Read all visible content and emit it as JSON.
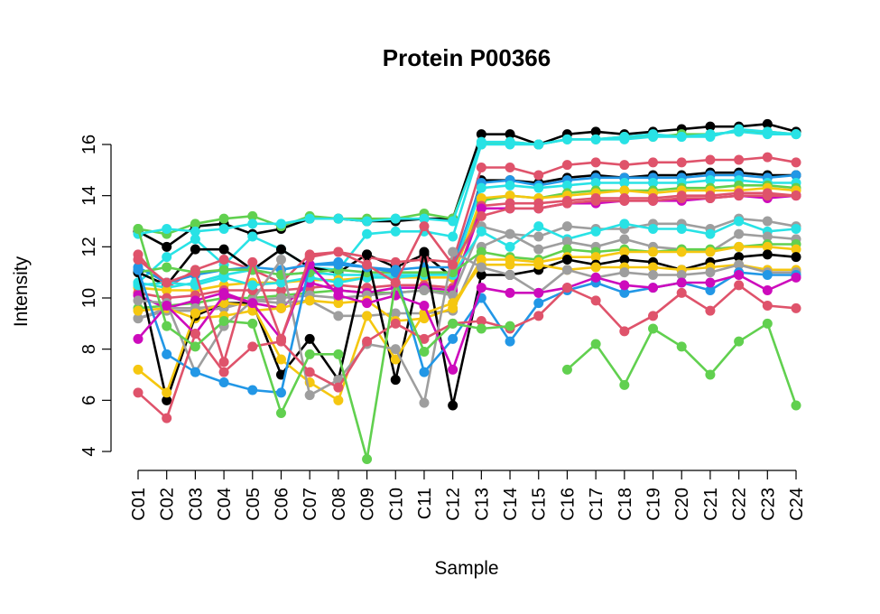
{
  "chart_data": {
    "type": "line",
    "title": "Protein P00366",
    "xlabel": "Sample",
    "ylabel": "Intensity",
    "ylim": [
      4,
      16.5
    ],
    "yticks": [
      4,
      6,
      8,
      10,
      12,
      14,
      16
    ],
    "grid": false,
    "legend": "none",
    "categories": [
      "C01",
      "C02",
      "C03",
      "C04",
      "C05",
      "C06",
      "C07",
      "C08",
      "C09",
      "C10",
      "C11",
      "C12",
      "C13",
      "C14",
      "C15",
      "C16",
      "C17",
      "C18",
      "C19",
      "C20",
      "C21",
      "C22",
      "C23",
      "C24"
    ],
    "series": [
      {
        "color": "#000000",
        "values": [
          12.6,
          12.0,
          12.8,
          12.9,
          12.5,
          12.7,
          13.1,
          13.1,
          13.0,
          13.0,
          13.1,
          13.1,
          16.4,
          16.4,
          16.0,
          16.4,
          16.5,
          16.4,
          16.5,
          16.6,
          16.7,
          16.7,
          16.8,
          16.5
        ]
      },
      {
        "color": "#61D04F",
        "values": [
          12.7,
          12.5,
          12.9,
          13.1,
          13.2,
          12.8,
          13.2,
          13.1,
          13.1,
          13.1,
          13.3,
          13.1,
          16.0,
          16.1,
          16.0,
          16.2,
          16.2,
          16.3,
          16.3,
          16.4,
          16.4,
          16.5,
          16.5,
          16.4
        ]
      },
      {
        "color": "#28E2E5",
        "values": [
          12.5,
          12.7,
          12.6,
          12.7,
          12.9,
          12.9,
          13.1,
          13.1,
          13.0,
          13.1,
          13.1,
          13.0,
          16.1,
          16.1,
          16.0,
          16.2,
          16.2,
          16.2,
          16.3,
          16.3,
          16.4,
          16.5,
          16.4,
          16.4
        ]
      },
      {
        "color": "#28E2E5",
        "values": [
          10.6,
          11.6,
          12.3,
          11.3,
          12.4,
          11.9,
          11.2,
          11.1,
          12.5,
          12.6,
          12.6,
          12.4,
          16.0,
          16.0,
          16.0,
          16.2,
          16.2,
          16.3,
          16.4,
          16.3,
          16.3,
          16.6,
          16.5,
          16.4
        ]
      },
      {
        "color": "#000000",
        "values": [
          11.0,
          10.5,
          11.9,
          11.9,
          11.1,
          11.9,
          11.2,
          11.0,
          11.7,
          11.2,
          11.7,
          10.8,
          14.6,
          14.6,
          14.5,
          14.7,
          14.8,
          14.7,
          14.8,
          14.8,
          14.9,
          14.9,
          14.8,
          14.8
        ]
      },
      {
        "color": "#DF536B",
        "values": [
          11.7,
          10.4,
          11.1,
          11.5,
          11.1,
          10.6,
          11.7,
          11.8,
          11.6,
          11.4,
          11.5,
          11.4,
          15.1,
          15.1,
          14.8,
          15.2,
          15.3,
          15.2,
          15.3,
          15.3,
          15.4,
          15.4,
          15.5,
          15.3
        ]
      },
      {
        "color": "#2297E6",
        "values": [
          11.2,
          10.6,
          10.9,
          11.1,
          11.2,
          11.1,
          11.3,
          11.4,
          11.2,
          11.1,
          11.2,
          11.2,
          14.5,
          14.6,
          14.4,
          14.6,
          14.7,
          14.7,
          14.7,
          14.7,
          14.8,
          14.8,
          14.7,
          14.8
        ]
      },
      {
        "color": "#28E2E5",
        "values": [
          10.6,
          10.4,
          10.6,
          10.9,
          11.1,
          10.9,
          11.0,
          10.9,
          10.9,
          10.9,
          10.9,
          11.0,
          14.3,
          14.4,
          14.3,
          14.4,
          14.5,
          14.5,
          14.5,
          14.5,
          14.6,
          14.6,
          14.5,
          14.5
        ]
      },
      {
        "color": "#61D04F",
        "values": [
          9.6,
          9.7,
          9.8,
          10.0,
          10.0,
          10.1,
          10.2,
          10.3,
          10.2,
          10.2,
          10.3,
          10.2,
          13.8,
          14.0,
          13.9,
          14.1,
          14.2,
          14.2,
          14.2,
          14.3,
          14.3,
          14.4,
          14.4,
          14.3
        ]
      },
      {
        "color": "#F5C710",
        "values": [
          10.4,
          10.3,
          10.3,
          10.5,
          10.6,
          10.6,
          10.7,
          10.7,
          10.8,
          10.8,
          10.8,
          10.8,
          13.9,
          14.0,
          13.9,
          14.0,
          14.1,
          14.2,
          14.1,
          14.2,
          14.2,
          14.2,
          14.3,
          14.2
        ]
      },
      {
        "color": "#DF536B",
        "values": [
          10.2,
          10.0,
          10.1,
          10.3,
          10.3,
          10.3,
          10.4,
          10.5,
          10.4,
          10.5,
          10.5,
          10.4,
          13.6,
          13.7,
          13.7,
          13.8,
          13.9,
          13.9,
          13.9,
          14.0,
          14.0,
          14.1,
          14.1,
          14.0
        ]
      },
      {
        "color": "#CD0BBC",
        "values": [
          10.1,
          9.6,
          9.9,
          10.2,
          9.8,
          9.6,
          10.6,
          10.3,
          10.2,
          10.4,
          10.4,
          10.3,
          13.5,
          13.5,
          13.5,
          13.7,
          13.7,
          13.8,
          13.8,
          13.8,
          13.9,
          14.0,
          13.9,
          14.0
        ]
      },
      {
        "color": "#9E9E9E",
        "values": [
          9.2,
          9.5,
          9.5,
          9.6,
          9.9,
          10.0,
          10.1,
          10.0,
          10.1,
          10.2,
          10.3,
          10.1,
          12.8,
          12.5,
          12.4,
          12.8,
          12.7,
          12.7,
          12.9,
          12.9,
          12.7,
          13.1,
          13.0,
          12.8
        ]
      },
      {
        "color": "#28E2E5",
        "values": [
          10.5,
          10.6,
          10.5,
          10.8,
          10.5,
          10.6,
          10.8,
          10.6,
          10.8,
          10.8,
          10.9,
          10.9,
          12.6,
          12.0,
          12.8,
          12.3,
          12.6,
          12.9,
          12.7,
          12.7,
          12.5,
          13.0,
          12.6,
          12.7
        ]
      },
      {
        "color": "#9E9E9E",
        "values": [
          9.2,
          9.6,
          9.6,
          9.7,
          9.9,
          9.8,
          9.9,
          9.3,
          9.3,
          9.4,
          9.4,
          9.5,
          12.0,
          12.5,
          11.9,
          12.2,
          12.0,
          12.3,
          12.0,
          11.9,
          11.8,
          12.5,
          12.4,
          12.3
        ]
      },
      {
        "color": "#61D04F",
        "values": [
          11.0,
          11.2,
          11.0,
          11.1,
          11.1,
          10.9,
          11.0,
          11.1,
          11.0,
          11.0,
          11.0,
          11.0,
          11.8,
          11.6,
          11.5,
          11.9,
          11.8,
          11.9,
          11.8,
          11.9,
          11.9,
          12.0,
          12.1,
          12.1
        ]
      },
      {
        "color": "#F5C710",
        "values": [
          9.5,
          9.6,
          9.2,
          9.3,
          9.5,
          9.6,
          9.9,
          9.8,
          9.9,
          9.1,
          9.2,
          9.6,
          11.5,
          11.5,
          11.4,
          11.6,
          11.6,
          11.8,
          11.8,
          11.8,
          11.8,
          12.0,
          12.0,
          11.9
        ]
      },
      {
        "color": "#000000",
        "values": [
          11.0,
          6.0,
          9.3,
          9.8,
          9.8,
          7.0,
          8.4,
          6.8,
          11.7,
          6.8,
          11.8,
          5.8,
          10.9,
          10.9,
          11.1,
          11.5,
          11.3,
          11.5,
          11.4,
          11.1,
          11.4,
          11.6,
          11.7,
          11.6
        ]
      },
      {
        "color": "#F5C710",
        "values": [
          7.2,
          6.3,
          9.4,
          9.8,
          9.7,
          7.6,
          6.7,
          6.0,
          9.3,
          7.6,
          9.4,
          9.8,
          11.3,
          11.3,
          11.3,
          11.1,
          11.2,
          11.2,
          11.2,
          11.1,
          11.2,
          11.3,
          11.1,
          11.1
        ]
      },
      {
        "color": "#9E9E9E",
        "values": [
          9.9,
          9.8,
          7.1,
          8.9,
          9.9,
          11.5,
          6.2,
          6.8,
          8.2,
          8.0,
          5.9,
          11.8,
          11.2,
          10.9,
          10.2,
          11.1,
          10.8,
          11.0,
          10.9,
          10.9,
          11.0,
          11.3,
          11.0,
          11.0
        ]
      },
      {
        "color": "#2297E6",
        "values": [
          11.1,
          7.8,
          7.1,
          6.7,
          6.4,
          6.3,
          11.3,
          11.3,
          11.2,
          11.0,
          7.1,
          8.4,
          10.0,
          8.3,
          9.8,
          10.3,
          10.6,
          10.2,
          10.4,
          10.6,
          10.3,
          11.0,
          10.9,
          10.9
        ]
      },
      {
        "color": "#CD0BBC",
        "values": [
          8.4,
          9.7,
          8.6,
          10.1,
          9.8,
          8.4,
          11.3,
          10.1,
          9.8,
          10.1,
          9.7,
          7.2,
          10.4,
          10.2,
          10.2,
          10.4,
          10.8,
          10.5,
          10.4,
          10.6,
          10.6,
          10.9,
          10.3,
          10.8
        ]
      },
      {
        "color": "#DF536B",
        "values": [
          6.3,
          5.3,
          8.6,
          7.1,
          8.1,
          8.3,
          7.1,
          6.5,
          8.3,
          9.0,
          8.4,
          9.0,
          9.1,
          8.8,
          9.3,
          10.4,
          9.9,
          8.7,
          9.3,
          10.2,
          9.5,
          10.5,
          9.7,
          9.6
        ]
      },
      {
        "color": "#61D04F",
        "values": [
          12.7,
          8.9,
          8.1,
          9.1,
          9.0,
          5.5,
          7.8,
          7.8,
          3.7,
          10.6,
          7.9,
          9.0,
          8.8,
          8.9,
          null,
          7.2,
          8.2,
          6.6,
          8.8,
          8.1,
          7.0,
          8.3,
          9.0,
          5.8
        ]
      },
      {
        "color": "#DF536B",
        "values": [
          11.5,
          10.6,
          11.0,
          7.5,
          11.4,
          8.4,
          11.6,
          11.8,
          11.3,
          10.6,
          12.8,
          11.3,
          13.2,
          13.5,
          13.5,
          13.7,
          13.8,
          13.8,
          13.8,
          13.9,
          13.9,
          14.0,
          14.0,
          14.0
        ]
      }
    ]
  }
}
